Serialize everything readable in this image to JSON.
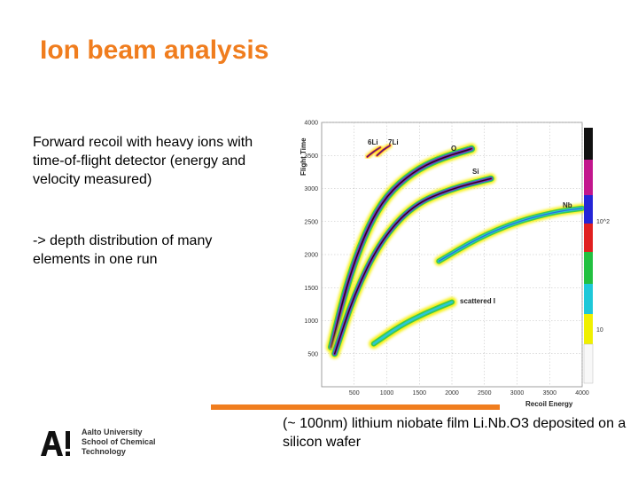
{
  "slide": {
    "title": "Ion beam analysis",
    "text_block_1": "Forward recoil with heavy ions with time-of-flight detector (energy and velocity measured)",
    "text_block_2": "-> depth distribution of many elements in one run",
    "caption": "(~ 100nm) lithium niobate film Li.Nb.O3 deposited on a silicon wafer",
    "logo": {
      "line1": "Aalto University",
      "line2": "School of Chemical",
      "line3": "Technology"
    },
    "colors": {
      "accent": "#f07d1e"
    }
  },
  "chart_data": {
    "type": "scatter",
    "title": "",
    "xlabel": "Recoil Energy",
    "ylabel": "Flight Time",
    "xlim": [
      0,
      4000
    ],
    "ylim": [
      0,
      4000
    ],
    "x_ticks": [
      "500",
      "1000",
      "1500",
      "2000",
      "2500",
      "3000",
      "3500",
      "4000"
    ],
    "y_ticks": [
      "500",
      "1000",
      "1500",
      "2000",
      "2500",
      "3000",
      "3500",
      "4000"
    ],
    "annotations": [
      "6Li",
      "7Li",
      "O",
      "Si",
      "Nb",
      "scattered I"
    ],
    "colorbar_labels": [
      "10^2",
      "10"
    ],
    "series": [
      {
        "name": "6Li",
        "x": [
          700,
          800,
          900
        ],
        "y": [
          3480,
          3560,
          3620
        ]
      },
      {
        "name": "7Li",
        "x": [
          850,
          950,
          1050
        ],
        "y": [
          3500,
          3590,
          3650
        ]
      },
      {
        "name": "O",
        "x": [
          150,
          400,
          700,
          1000,
          1400,
          1800,
          2300
        ],
        "y": [
          600,
          1600,
          2400,
          2900,
          3250,
          3450,
          3600
        ]
      },
      {
        "name": "Si",
        "x": [
          200,
          500,
          900,
          1400,
          2000,
          2600
        ],
        "y": [
          500,
          1400,
          2200,
          2750,
          3000,
          3150
        ]
      },
      {
        "name": "Nb",
        "x": [
          1800,
          2400,
          3000,
          3600,
          4000
        ],
        "y": [
          1900,
          2250,
          2500,
          2650,
          2700
        ]
      },
      {
        "name": "scattered I",
        "x": [
          800,
          1200,
          1600,
          2000
        ],
        "y": [
          650,
          920,
          1120,
          1280
        ]
      }
    ]
  }
}
